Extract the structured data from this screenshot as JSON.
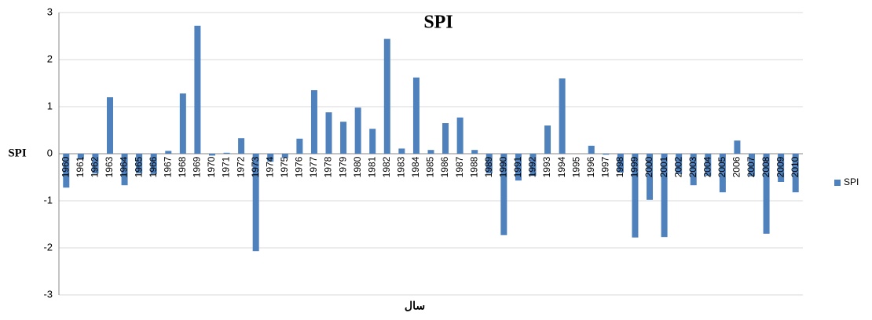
{
  "chart_data": {
    "type": "bar",
    "title": "SPI",
    "y_label": "SPI",
    "x_label": "سال",
    "categories": [
      "1960",
      "1961",
      "1962",
      "1963",
      "1964",
      "1965",
      "1966",
      "1967",
      "1968",
      "1969",
      "1970",
      "1971",
      "1972",
      "1973",
      "1974",
      "1975",
      "1976",
      "1977",
      "1978",
      "1979",
      "1980",
      "1981",
      "1982",
      "1983",
      "1984",
      "1985",
      "1986",
      "1987",
      "1988",
      "1989",
      "1990",
      "1991",
      "1992",
      "1993",
      "1994",
      "1995",
      "1996",
      "1997",
      "1998",
      "1999",
      "2000",
      "2001",
      "2002",
      "2003",
      "2004",
      "2005",
      "2006",
      "2007",
      "2008",
      "2009",
      "2010"
    ],
    "series": [
      {
        "name": "SPI",
        "color": "#4f81bd",
        "values": [
          -0.72,
          -0.12,
          -0.42,
          1.2,
          -0.67,
          -0.42,
          -0.43,
          0.06,
          1.28,
          2.72,
          -0.04,
          0.02,
          0.33,
          -2.07,
          -0.17,
          -0.09,
          0.32,
          1.35,
          0.88,
          0.68,
          0.98,
          0.53,
          2.44,
          0.11,
          1.62,
          0.08,
          0.65,
          0.77,
          0.08,
          -0.42,
          -1.73,
          -0.57,
          -0.47,
          0.6,
          1.6,
          0,
          0.17,
          -0.02,
          -0.4,
          -1.78,
          -0.98,
          -1.77,
          -0.43,
          -0.67,
          -0.47,
          -0.82,
          0.28,
          -0.48,
          -1.7,
          -0.6,
          -0.82
        ]
      }
    ],
    "ylim": [
      -3,
      3
    ],
    "yticks": [
      -3,
      -2,
      -1,
      0,
      1,
      2,
      3
    ],
    "grid": true,
    "legend": "right"
  }
}
